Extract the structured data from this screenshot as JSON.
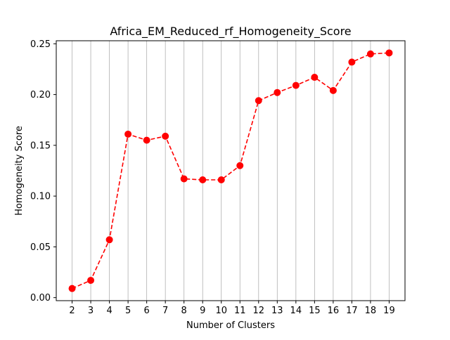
{
  "chart_data": {
    "type": "line",
    "title": "Africa_EM_Reduced_rf_Homogeneity_Score",
    "xlabel": "Number of Clusters",
    "ylabel": "Homogeneity Score",
    "x": [
      2,
      3,
      4,
      5,
      6,
      7,
      8,
      9,
      10,
      11,
      12,
      13,
      14,
      15,
      16,
      17,
      18,
      19
    ],
    "series": [
      {
        "values": [
          0.009,
          0.017,
          0.057,
          0.161,
          0.155,
          0.159,
          0.117,
          0.116,
          0.116,
          0.13,
          0.194,
          0.202,
          0.209,
          0.217,
          0.204,
          0.232,
          0.24,
          0.241
        ],
        "color": "#ff0000",
        "line_style": "dashed",
        "marker": "circle"
      }
    ],
    "xlim": [
      1.15,
      19.85
    ],
    "ylim": [
      -0.003,
      0.253
    ],
    "yticks": [
      "0.00",
      "0.05",
      "0.10",
      "0.15",
      "0.20",
      "0.25"
    ],
    "ytick_values": [
      0.0,
      0.05,
      0.1,
      0.15,
      0.2,
      0.25
    ],
    "grid": "x-only",
    "legend": "none"
  }
}
